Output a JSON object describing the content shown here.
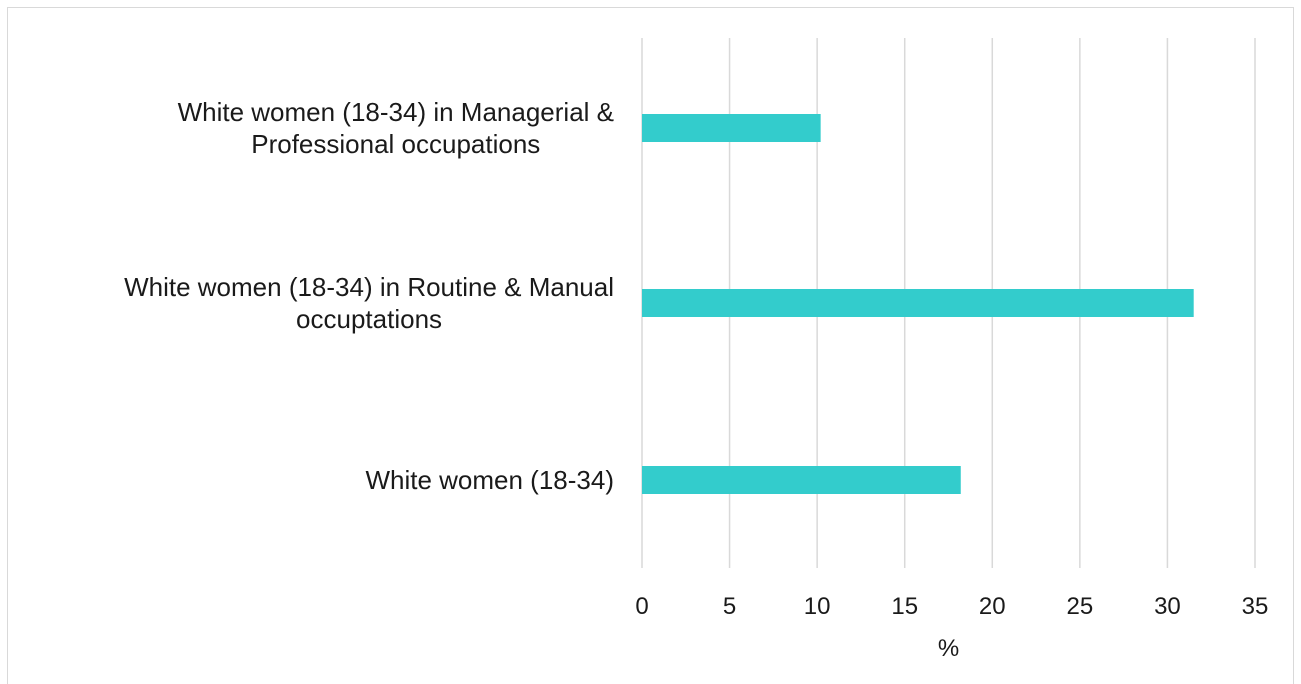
{
  "chart_data": {
    "type": "bar",
    "orientation": "horizontal",
    "categories": [
      [
        "White women (18-34) in Managerial &",
        "Professional occupations"
      ],
      [
        "White women (18-34) in Routine & Manual",
        "occuptations"
      ],
      [
        "White women (18-34)"
      ]
    ],
    "values": [
      10.2,
      31.5,
      18.2
    ],
    "xlabel": "%",
    "xlim": [
      0,
      35
    ],
    "xticks": [
      0,
      5,
      10,
      15,
      20,
      25,
      30,
      35
    ],
    "grid": true,
    "legend": "none",
    "bar_color": "#33cccc",
    "grid_color": "#d9d9d9"
  }
}
